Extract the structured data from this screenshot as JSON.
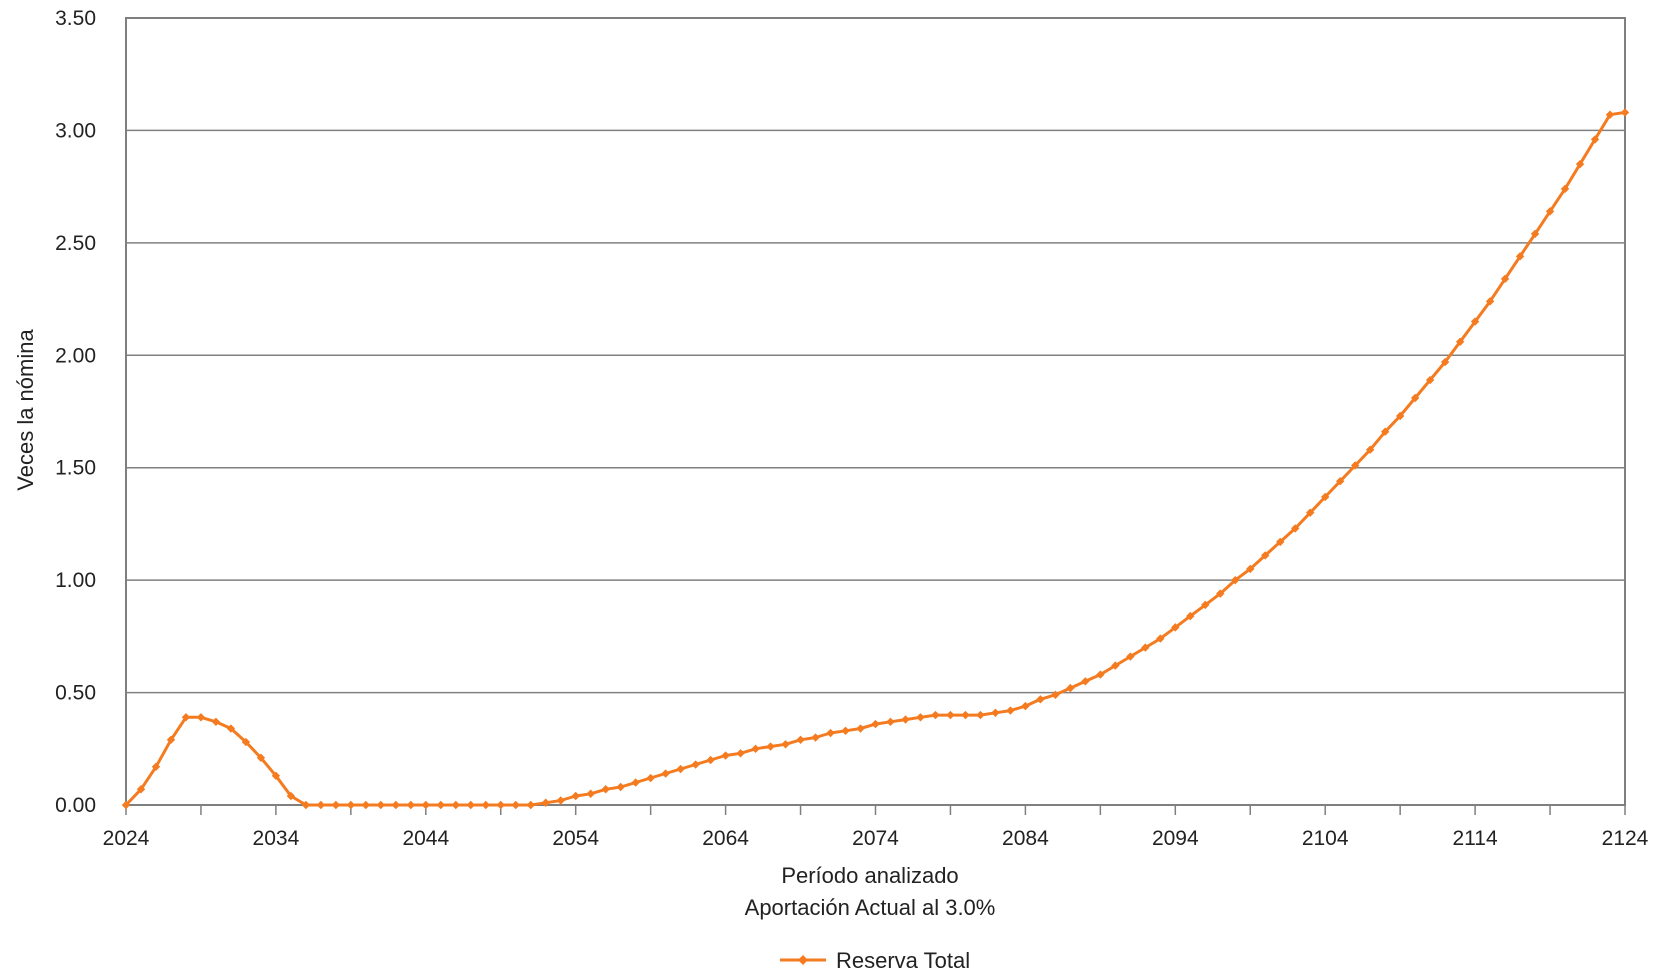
{
  "chart_data": {
    "type": "line",
    "title": "",
    "xlabel": "Período analizado",
    "subtitle": "Aportación Actual al 3.0%",
    "ylabel": "Veces la nómina",
    "xlim": [
      2024,
      2124
    ],
    "ylim": [
      0,
      3.5
    ],
    "x_ticks": [
      "2024",
      "2034",
      "2044",
      "2054",
      "2064",
      "2074",
      "2084",
      "2094",
      "2104",
      "2114",
      "2124"
    ],
    "y_ticks": [
      "0.00",
      "0.50",
      "1.00",
      "1.50",
      "2.00",
      "2.50",
      "3.00",
      "3.50"
    ],
    "grid": "horizontal",
    "legend": "bottom-center",
    "series": [
      {
        "name": "Reserva Total",
        "color": "#f47b20",
        "marker": "diamond",
        "x": [
          2024,
          2025,
          2026,
          2027,
          2028,
          2029,
          2030,
          2031,
          2032,
          2033,
          2034,
          2035,
          2036,
          2037,
          2038,
          2039,
          2040,
          2041,
          2042,
          2043,
          2044,
          2045,
          2046,
          2047,
          2048,
          2049,
          2050,
          2051,
          2052,
          2053,
          2054,
          2055,
          2056,
          2057,
          2058,
          2059,
          2060,
          2061,
          2062,
          2063,
          2064,
          2065,
          2066,
          2067,
          2068,
          2069,
          2070,
          2071,
          2072,
          2073,
          2074,
          2075,
          2076,
          2077,
          2078,
          2079,
          2080,
          2081,
          2082,
          2083,
          2084,
          2085,
          2086,
          2087,
          2088,
          2089,
          2090,
          2091,
          2092,
          2093,
          2094,
          2095,
          2096,
          2097,
          2098,
          2099,
          2100,
          2101,
          2102,
          2103,
          2104,
          2105,
          2106,
          2107,
          2108,
          2109,
          2110,
          2111,
          2112,
          2113,
          2114,
          2115,
          2116,
          2117,
          2118,
          2119,
          2120,
          2121,
          2122,
          2123,
          2124
        ],
        "values": [
          0.0,
          0.07,
          0.17,
          0.29,
          0.39,
          0.39,
          0.37,
          0.34,
          0.28,
          0.21,
          0.13,
          0.04,
          0.0,
          0.0,
          0.0,
          0.0,
          0.0,
          0.0,
          0.0,
          0.0,
          0.0,
          0.0,
          0.0,
          0.0,
          0.0,
          0.0,
          0.0,
          0.0,
          0.01,
          0.02,
          0.04,
          0.05,
          0.07,
          0.08,
          0.1,
          0.12,
          0.14,
          0.16,
          0.18,
          0.2,
          0.22,
          0.23,
          0.25,
          0.26,
          0.27,
          0.29,
          0.3,
          0.32,
          0.33,
          0.34,
          0.36,
          0.37,
          0.38,
          0.39,
          0.4,
          0.4,
          0.4,
          0.4,
          0.41,
          0.42,
          0.44,
          0.47,
          0.49,
          0.52,
          0.55,
          0.58,
          0.62,
          0.66,
          0.7,
          0.74,
          0.79,
          0.84,
          0.89,
          0.94,
          1.0,
          1.05,
          1.11,
          1.17,
          1.23,
          1.3,
          1.37,
          1.44,
          1.51,
          1.58,
          1.66,
          1.73,
          1.81,
          1.89,
          1.97,
          2.06,
          2.15,
          2.24,
          2.34,
          2.44,
          2.54,
          2.64,
          2.74,
          2.85,
          2.96,
          3.07,
          3.08
        ]
      }
    ]
  }
}
